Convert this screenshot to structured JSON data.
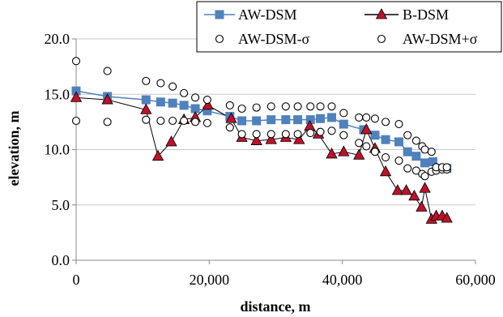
{
  "chart_data": {
    "type": "line",
    "xlabel": "distance, m",
    "ylabel": "elevation, m",
    "xlim": [
      0,
      60000
    ],
    "ylim": [
      0,
      20
    ],
    "x_ticks": [
      0,
      20000,
      40000,
      60000
    ],
    "x_tick_labels": [
      "0",
      "20,000",
      "40,000",
      "60,000"
    ],
    "y_ticks": [
      0,
      5,
      10,
      15,
      20
    ],
    "y_tick_labels": [
      "0.0",
      "5.0",
      "10.0",
      "15.0",
      "20.0"
    ],
    "grid": "horizontal",
    "legend_position": "top-right",
    "series": [
      {
        "name": "AW-DSM",
        "marker": "square",
        "color": "#4f81bd",
        "points": [
          [
            0,
            15.3
          ],
          [
            4700,
            14.8
          ],
          [
            10500,
            14.5
          ],
          [
            12700,
            14.3
          ],
          [
            14500,
            14.2
          ],
          [
            16200,
            14.0
          ],
          [
            17900,
            13.7
          ],
          [
            19700,
            13.5
          ],
          [
            23100,
            13.0
          ],
          [
            24900,
            12.6
          ],
          [
            27100,
            12.6
          ],
          [
            29300,
            12.7
          ],
          [
            31500,
            12.7
          ],
          [
            33300,
            12.7
          ],
          [
            35200,
            12.7
          ],
          [
            36700,
            12.8
          ],
          [
            38400,
            12.9
          ],
          [
            40200,
            12.3
          ],
          [
            43200,
            11.8
          ],
          [
            44900,
            11.3
          ],
          [
            46500,
            10.9
          ],
          [
            48500,
            10.7
          ],
          [
            49800,
            9.8
          ],
          [
            51100,
            9.4
          ],
          [
            52400,
            8.8
          ],
          [
            53600,
            8.9
          ],
          [
            55700,
            8.3
          ]
        ]
      },
      {
        "name": "B-DSM",
        "marker": "triangle",
        "color": "#c0102a",
        "points": [
          [
            0,
            14.7
          ],
          [
            4700,
            14.5
          ],
          [
            10500,
            13.6
          ],
          [
            12300,
            9.4
          ],
          [
            14300,
            10.7
          ],
          [
            16200,
            12.7
          ],
          [
            17900,
            12.9
          ],
          [
            19800,
            14.0
          ],
          [
            23300,
            12.8
          ],
          [
            24900,
            11.1
          ],
          [
            27100,
            10.8
          ],
          [
            29300,
            10.9
          ],
          [
            31500,
            11.1
          ],
          [
            33500,
            10.9
          ],
          [
            35100,
            12.1
          ],
          [
            36400,
            11.4
          ],
          [
            38400,
            9.6
          ],
          [
            40200,
            9.8
          ],
          [
            42500,
            9.5
          ],
          [
            43600,
            11.8
          ],
          [
            44900,
            10.1
          ],
          [
            46500,
            8.0
          ],
          [
            48300,
            6.3
          ],
          [
            49600,
            6.3
          ],
          [
            50800,
            5.8
          ],
          [
            51900,
            4.8
          ],
          [
            52400,
            6.5
          ],
          [
            53400,
            3.7
          ],
          [
            54100,
            4.0
          ],
          [
            55000,
            4.0
          ],
          [
            55700,
            3.8
          ]
        ]
      },
      {
        "name": "AW-DSM-σ",
        "marker": "circle-open",
        "color": "#000000",
        "points": [
          [
            0,
            12.6
          ],
          [
            4700,
            12.5
          ],
          [
            10500,
            12.7
          ],
          [
            12700,
            12.6
          ],
          [
            14500,
            12.6
          ],
          [
            16200,
            12.6
          ],
          [
            17900,
            12.5
          ],
          [
            19700,
            12.4
          ],
          [
            23100,
            12.0
          ],
          [
            24900,
            11.4
          ],
          [
            27100,
            11.4
          ],
          [
            29300,
            11.4
          ],
          [
            31500,
            11.4
          ],
          [
            33300,
            11.4
          ],
          [
            35200,
            11.5
          ],
          [
            36700,
            11.6
          ],
          [
            38400,
            11.7
          ],
          [
            40200,
            11.3
          ],
          [
            42500,
            10.6
          ],
          [
            43600,
            10.3
          ],
          [
            44900,
            9.8
          ],
          [
            46500,
            9.3
          ],
          [
            48500,
            9.0
          ],
          [
            49800,
            8.3
          ],
          [
            51100,
            8.1
          ],
          [
            52000,
            7.8
          ],
          [
            52400,
            7.6
          ],
          [
            53400,
            8.0
          ],
          [
            54100,
            8.1
          ],
          [
            55000,
            8.2
          ],
          [
            55700,
            8.2
          ]
        ]
      },
      {
        "name": "AW-DSM+σ",
        "marker": "circle-open",
        "color": "#000000",
        "points": [
          [
            0,
            18.0
          ],
          [
            4700,
            17.1
          ],
          [
            10500,
            16.2
          ],
          [
            12700,
            16.0
          ],
          [
            14500,
            15.7
          ],
          [
            16200,
            15.1
          ],
          [
            17900,
            14.7
          ],
          [
            19700,
            14.5
          ],
          [
            23100,
            14.0
          ],
          [
            24900,
            13.7
          ],
          [
            27100,
            13.8
          ],
          [
            29300,
            13.9
          ],
          [
            31500,
            13.9
          ],
          [
            33300,
            13.9
          ],
          [
            35200,
            13.9
          ],
          [
            36700,
            13.9
          ],
          [
            38400,
            13.9
          ],
          [
            40200,
            13.3
          ],
          [
            42500,
            12.9
          ],
          [
            43600,
            12.9
          ],
          [
            44900,
            12.8
          ],
          [
            46500,
            12.5
          ],
          [
            48500,
            12.3
          ],
          [
            49800,
            11.3
          ],
          [
            51100,
            10.8
          ],
          [
            52000,
            10.3
          ],
          [
            52400,
            10.0
          ],
          [
            53400,
            9.8
          ],
          [
            54100,
            8.4
          ],
          [
            55000,
            8.4
          ],
          [
            55700,
            8.4
          ]
        ]
      }
    ]
  }
}
